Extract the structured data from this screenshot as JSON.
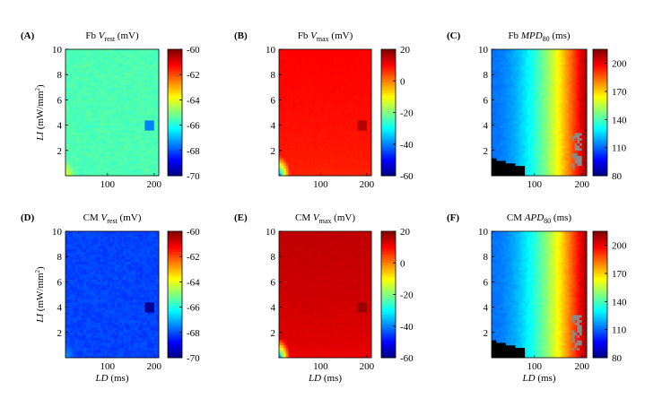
{
  "chart_data": [
    {
      "type": "heatmap",
      "panel_label": "(A)",
      "title": {
        "prefix": "Fb",
        "variable": "V",
        "subscript": "rest",
        "unit": "(mV)"
      },
      "xlabel": "",
      "ylabel": "LI (mW/mm2)",
      "xlim": [
        10,
        210
      ],
      "ylim": [
        0,
        10
      ],
      "x_ticks": [
        100,
        200
      ],
      "y_ticks": [
        2,
        4,
        6,
        8,
        10
      ],
      "colorbar": {
        "min": -70,
        "max": -60,
        "ticks": [
          -70,
          -68,
          -66,
          -64,
          -62,
          -60
        ]
      },
      "field": {
        "kind": "vrest",
        "base": -65.5,
        "corner": -63.8,
        "hot_spot": {
          "x": 190,
          "y": 4,
          "value": -67.5
        }
      }
    },
    {
      "type": "heatmap",
      "panel_label": "(B)",
      "title": {
        "prefix": "Fb",
        "variable": "V",
        "subscript": "max",
        "unit": "(mV)"
      },
      "xlabel": "",
      "ylabel": "",
      "xlim": [
        10,
        210
      ],
      "ylim": [
        0,
        10
      ],
      "x_ticks": [
        100,
        200
      ],
      "y_ticks": [
        2,
        4,
        6,
        8,
        10
      ],
      "colorbar": {
        "min": -60,
        "max": 20,
        "ticks": [
          -60,
          -40,
          -20,
          0,
          20
        ]
      },
      "field": {
        "kind": "vmax",
        "base": 10,
        "low": 7,
        "edge_min": -55,
        "hot_spot": {
          "x": 190,
          "y": 4,
          "value": 16
        }
      }
    },
    {
      "type": "heatmap",
      "panel_label": "(C)",
      "title": {
        "prefix": "Fb",
        "variable": "MPD",
        "subscript": "80",
        "unit": "(ms)"
      },
      "xlabel": "",
      "ylabel": "",
      "xlim": [
        10,
        210
      ],
      "ylim": [
        0,
        10
      ],
      "x_ticks": [
        100,
        200
      ],
      "y_ticks": [
        2,
        4,
        6,
        8,
        10
      ],
      "colorbar": {
        "min": 80,
        "max": 215,
        "ticks": [
          80,
          110,
          140,
          170,
          200
        ]
      },
      "field": {
        "kind": "apd",
        "min": 112,
        "max": 212
      }
    },
    {
      "type": "heatmap",
      "panel_label": "(D)",
      "title": {
        "prefix": "CM",
        "variable": "V",
        "subscript": "rest",
        "unit": "(mV)"
      },
      "xlabel": "LD (ms)",
      "ylabel": "LI (mW/mm2)",
      "xlim": [
        10,
        210
      ],
      "ylim": [
        0,
        10
      ],
      "x_ticks": [
        100,
        200
      ],
      "y_ticks": [
        2,
        4,
        6,
        8,
        10
      ],
      "colorbar": {
        "min": -70,
        "max": -60,
        "ticks": [
          -70,
          -68,
          -66,
          -64,
          -62,
          -60
        ]
      },
      "field": {
        "kind": "vrest",
        "base": -68.1,
        "corner": -67.2,
        "hot_spot": {
          "x": 190,
          "y": 4,
          "value": -69.8
        }
      }
    },
    {
      "type": "heatmap",
      "panel_label": "(E)",
      "title": {
        "prefix": "CM",
        "variable": "V",
        "subscript": "max",
        "unit": "(mV)"
      },
      "xlabel": "LD (ms)",
      "ylabel": "",
      "xlim": [
        10,
        210
      ],
      "ylim": [
        0,
        10
      ],
      "x_ticks": [
        100,
        200
      ],
      "y_ticks": [
        2,
        4,
        6,
        8,
        10
      ],
      "colorbar": {
        "min": -60,
        "max": 20,
        "ticks": [
          -60,
          -40,
          -20,
          0,
          20
        ]
      },
      "field": {
        "kind": "vmax",
        "base": 15,
        "low": 11,
        "edge_min": -55,
        "hot_spot": {
          "x": 190,
          "y": 4,
          "value": 18
        }
      }
    },
    {
      "type": "heatmap",
      "panel_label": "(F)",
      "title": {
        "prefix": "CM",
        "variable": "APD",
        "subscript": "80",
        "unit": "(ms)"
      },
      "xlabel": "LD (ms)",
      "ylabel": "",
      "xlim": [
        10,
        210
      ],
      "ylim": [
        0,
        10
      ],
      "x_ticks": [
        100,
        200
      ],
      "y_ticks": [
        2,
        4,
        6,
        8,
        10
      ],
      "colorbar": {
        "min": 80,
        "max": 215,
        "ticks": [
          80,
          110,
          140,
          170,
          200
        ]
      },
      "field": {
        "kind": "apd",
        "min": 112,
        "max": 212
      }
    }
  ]
}
